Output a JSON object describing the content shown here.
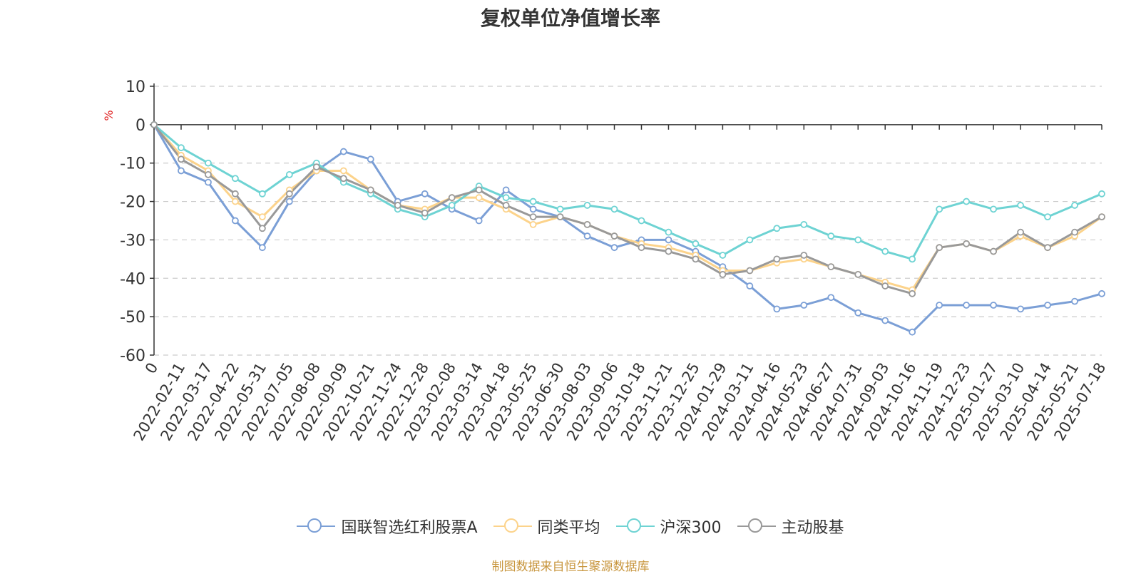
{
  "chart_data": {
    "type": "line",
    "title": "复权单位净值增长率",
    "ylabel": "%",
    "ylim": [
      -60,
      10
    ],
    "yticks": [
      "10",
      "0",
      "-10",
      "-20",
      "-30",
      "-40",
      "-50",
      "-60"
    ],
    "x_tick_labels": [
      "0",
      "2022-02-11",
      "2022-03-17",
      "2022-04-22",
      "2022-05-31",
      "2022-07-05",
      "2022-08-08",
      "2022-09-09",
      "2022-10-21",
      "2022-11-24",
      "2022-12-28",
      "2023-02-08",
      "2023-03-14",
      "2023-04-18",
      "2023-05-25",
      "2023-06-30",
      "2023-08-03",
      "2023-09-06",
      "2023-10-18",
      "2023-11-21",
      "2023-12-25",
      "2024-01-29",
      "2024-03-11",
      "2024-04-16",
      "2024-05-23",
      "2024-06-27",
      "2024-07-31",
      "2024-09-03",
      "2024-10-16",
      "2024-11-19",
      "2024-12-23",
      "2025-01-27",
      "2025-03-10",
      "2025-04-14",
      "2025-05-21",
      "2025-07-18"
    ],
    "grid": true,
    "legend_position": "bottom",
    "series": [
      {
        "name": "国联智选红利股票A",
        "color": "#7b9fd6",
        "values": [
          0,
          -12,
          -15,
          -25,
          -32,
          -20,
          -12,
          -7,
          -9,
          -20,
          -18,
          -22,
          -25,
          -17,
          -22,
          -24,
          -29,
          -32,
          -30,
          -30,
          -33,
          -37,
          -42,
          -48,
          -47,
          -45,
          -49,
          -51,
          -54,
          -47,
          -47,
          -47,
          -48,
          -47,
          -46,
          -44
        ]
      },
      {
        "name": "同类平均",
        "color": "#fcd38b",
        "values": [
          0,
          -8,
          -12,
          -20,
          -24,
          -17,
          -12,
          -12,
          -17,
          -21,
          -22,
          -19,
          -19,
          -22,
          -26,
          -24,
          -26,
          -29,
          -31,
          -32,
          -34,
          -38,
          -38,
          -36,
          -35,
          -37,
          -39,
          -41,
          -43,
          -32,
          -31,
          -33,
          -29,
          -32,
          -29,
          -24
        ]
      },
      {
        "name": "沪深300",
        "color": "#6ed3d3",
        "values": [
          0,
          -6,
          -10,
          -14,
          -18,
          -13,
          -10,
          -15,
          -18,
          -22,
          -24,
          -21,
          -16,
          -19,
          -20,
          -22,
          -21,
          -22,
          -25,
          -28,
          -31,
          -34,
          -30,
          -27,
          -26,
          -29,
          -30,
          -33,
          -35,
          -22,
          -20,
          -22,
          -21,
          -24,
          -21,
          -18
        ]
      },
      {
        "name": "主动股基",
        "color": "#999999",
        "values": [
          0,
          -9,
          -13,
          -18,
          -27,
          -18,
          -11,
          -14,
          -17,
          -21,
          -23,
          -19,
          -17,
          -21,
          -24,
          -24,
          -26,
          -29,
          -32,
          -33,
          -35,
          -39,
          -38,
          -35,
          -34,
          -37,
          -39,
          -42,
          -44,
          -32,
          -31,
          -33,
          -28,
          -32,
          -28,
          -24
        ]
      }
    ]
  },
  "source_text": "制图数据来自恒生聚源数据库"
}
